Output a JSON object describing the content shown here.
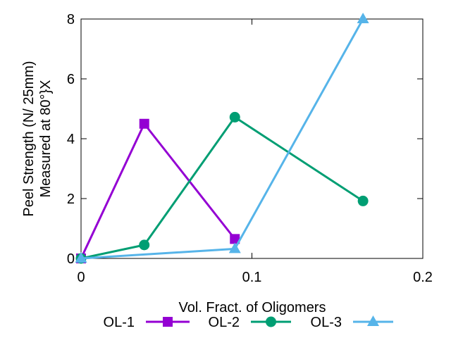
{
  "chart_data": {
    "type": "line",
    "xlabel": "Vol. Fract. of Oligomers",
    "ylabel": [
      "Peel Strength (N/ 25mm)",
      "Measured at 80°}X"
    ],
    "xlim": [
      0,
      0.2
    ],
    "ylim": [
      0,
      8
    ],
    "x_ticks": [
      "0",
      "0.1",
      "0.2"
    ],
    "y_ticks": [
      "0",
      "2",
      "4",
      "6",
      "8"
    ],
    "grid": false,
    "legend_position": "bottom",
    "series": [
      {
        "name": "OL-1",
        "color": "#9400d3",
        "marker": "square",
        "x": [
          0,
          0.037,
          0.09
        ],
        "y": [
          0,
          4.5,
          0.65
        ]
      },
      {
        "name": "OL-2",
        "color": "#009e73",
        "marker": "circle",
        "x": [
          0,
          0.037,
          0.09,
          0.165
        ],
        "y": [
          0,
          0.45,
          4.72,
          1.92
        ]
      },
      {
        "name": "OL-3",
        "color": "#56b4e9",
        "marker": "triangle",
        "x": [
          0,
          0.09,
          0.165
        ],
        "y": [
          0,
          0.32,
          8.0
        ]
      }
    ]
  }
}
